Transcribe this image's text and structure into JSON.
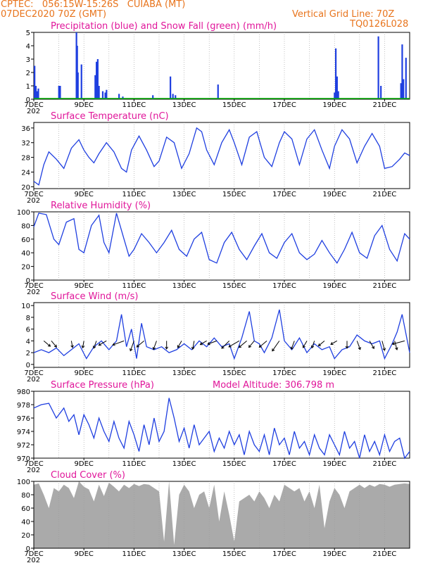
{
  "header": {
    "line1": "CPTEC:   056:15W-15:26S   CUIABA (MT)",
    "line2_left": "07DEC2020 70Z (GMT)",
    "line2_right": "Vertical Grid Line: 70Z",
    "line3_right": "TQ0126L028"
  },
  "colors": {
    "header": "#e8741c",
    "panel_title": "#e0169a",
    "series": "#1f3fe0",
    "snow": "#00b000",
    "cloud": "#aaaaaa",
    "arrows": "#000000"
  },
  "x_labels": [
    "7DEC",
    "9DEC",
    "11DEC",
    "13DEC",
    "15DEC",
    "17DEC",
    "19DEC",
    "21DEC"
  ],
  "x_under_label": "202",
  "chart_data": [
    {
      "type": "bar",
      "title": "Precipitation (blue) and Snow Fall (green) (mm/h)",
      "ylim": [
        0,
        5
      ],
      "yticks": [
        0,
        1,
        2,
        3,
        4,
        5
      ],
      "x_range_days": [
        7,
        22
      ],
      "series": [
        {
          "name": "Precipitation",
          "x": [
            7.03,
            7.08,
            7.13,
            7.18,
            8.0,
            8.05,
            8.7,
            8.73,
            8.76,
            8.9,
            9.45,
            9.5,
            9.55,
            9.6,
            9.75,
            9.85,
            9.9,
            10.4,
            10.55,
            11.75,
            12.45,
            12.55,
            12.65,
            14.35,
            19.0,
            19.05,
            19.1,
            19.15,
            20.75,
            20.85,
            21.65,
            21.7,
            21.75,
            21.85
          ],
          "values": [
            2.5,
            1.0,
            0.6,
            0.8,
            1.0,
            1.0,
            5.0,
            4.0,
            2.0,
            2.6,
            1.8,
            2.8,
            3.0,
            1.0,
            0.6,
            0.5,
            0.7,
            0.4,
            0.2,
            0.3,
            1.7,
            0.4,
            0.3,
            1.1,
            0.5,
            3.8,
            1.7,
            0.6,
            4.7,
            1.0,
            1.2,
            4.1,
            1.5,
            3.1
          ]
        },
        {
          "name": "Snow Fall",
          "x": [
            7,
            22
          ],
          "values": [
            0,
            0
          ]
        }
      ]
    },
    {
      "type": "line",
      "title": "Surface Temperature (nC)",
      "ylim": [
        19.5,
        37.5
      ],
      "yticks": [
        20,
        24,
        28,
        32,
        36
      ],
      "x": [
        7.0,
        7.2,
        7.4,
        7.6,
        7.9,
        8.2,
        8.5,
        8.8,
        9.0,
        9.2,
        9.4,
        9.6,
        9.9,
        10.2,
        10.5,
        10.7,
        10.9,
        11.2,
        11.5,
        11.8,
        12.0,
        12.3,
        12.6,
        12.9,
        13.2,
        13.5,
        13.7,
        13.9,
        14.2,
        14.5,
        14.8,
        15.0,
        15.3,
        15.6,
        15.9,
        16.2,
        16.5,
        16.8,
        17.0,
        17.3,
        17.6,
        17.9,
        18.2,
        18.5,
        18.8,
        19.0,
        19.3,
        19.6,
        19.9,
        20.2,
        20.5,
        20.8,
        21.0,
        21.3,
        21.6,
        21.8,
        22.0
      ],
      "values": [
        21.5,
        20.5,
        26.0,
        29.5,
        27.5,
        25.0,
        30.5,
        32.8,
        30.0,
        28.0,
        26.5,
        29.0,
        32.0,
        29.5,
        25.0,
        24.0,
        30.0,
        33.8,
        30.0,
        25.5,
        27.0,
        33.5,
        32.0,
        25.0,
        29.0,
        36.0,
        35.0,
        30.0,
        26.0,
        32.0,
        35.5,
        32.0,
        26.0,
        33.5,
        35.0,
        28.0,
        25.5,
        32.0,
        35.0,
        33.0,
        26.0,
        33.0,
        35.5,
        30.0,
        25.0,
        31.0,
        35.5,
        33.0,
        26.5,
        31.0,
        34.5,
        31.0,
        25.0,
        25.5,
        27.5,
        29.2,
        28.5
      ]
    },
    {
      "type": "line",
      "title": "Relative Humidity (%)",
      "ylim": [
        0,
        100
      ],
      "yticks": [
        0,
        20,
        40,
        60,
        80,
        100
      ],
      "x": [
        7.0,
        7.2,
        7.5,
        7.8,
        8.0,
        8.3,
        8.6,
        8.8,
        9.0,
        9.3,
        9.6,
        9.8,
        10.0,
        10.3,
        10.6,
        10.8,
        11.0,
        11.3,
        11.6,
        11.9,
        12.2,
        12.5,
        12.8,
        13.1,
        13.4,
        13.7,
        14.0,
        14.3,
        14.6,
        14.9,
        15.2,
        15.5,
        15.8,
        16.1,
        16.4,
        16.7,
        17.0,
        17.3,
        17.6,
        17.9,
        18.2,
        18.5,
        18.8,
        19.1,
        19.4,
        19.7,
        20.0,
        20.3,
        20.6,
        20.9,
        21.2,
        21.5,
        21.8,
        22.0
      ],
      "values": [
        78,
        98,
        96,
        60,
        52,
        85,
        90,
        45,
        40,
        80,
        95,
        55,
        40,
        98,
        60,
        35,
        45,
        68,
        55,
        40,
        55,
        73,
        45,
        35,
        60,
        70,
        30,
        25,
        55,
        70,
        45,
        30,
        50,
        68,
        40,
        32,
        55,
        68,
        40,
        30,
        38,
        58,
        40,
        25,
        45,
        70,
        40,
        32,
        65,
        80,
        45,
        28,
        68,
        60
      ]
    },
    {
      "type": "line",
      "title": "Surface Wind (m/s)",
      "ylim": [
        -0.5,
        10.5
      ],
      "yticks": [
        0,
        2,
        4,
        6,
        8,
        10
      ],
      "x": [
        7.0,
        7.3,
        7.6,
        7.9,
        8.2,
        8.5,
        8.8,
        9.1,
        9.4,
        9.7,
        10.0,
        10.3,
        10.5,
        10.7,
        10.9,
        11.1,
        11.3,
        11.5,
        11.8,
        12.1,
        12.4,
        12.7,
        13.0,
        13.3,
        13.6,
        13.9,
        14.2,
        14.5,
        14.8,
        15.0,
        15.3,
        15.6,
        15.8,
        16.0,
        16.2,
        16.5,
        16.8,
        17.0,
        17.3,
        17.6,
        17.9,
        18.2,
        18.5,
        18.8,
        19.0,
        19.3,
        19.6,
        19.9,
        20.2,
        20.5,
        20.8,
        21.0,
        21.3,
        21.5,
        21.7,
        22.0
      ],
      "values": [
        2.0,
        2.5,
        2.0,
        2.8,
        1.5,
        2.5,
        3.5,
        1.0,
        3.0,
        4.0,
        2.5,
        4.0,
        8.5,
        3.0,
        6.0,
        1.0,
        7.0,
        3.0,
        2.5,
        3.0,
        2.0,
        2.5,
        3.5,
        2.5,
        4.0,
        3.0,
        4.5,
        3.0,
        3.5,
        1.0,
        4.5,
        9.0,
        4.0,
        3.5,
        2.0,
        4.5,
        9.3,
        4.0,
        2.5,
        4.5,
        2.0,
        3.5,
        2.5,
        3.0,
        1.0,
        2.5,
        3.0,
        5.0,
        4.0,
        3.5,
        4.0,
        1.0,
        3.5,
        5.5,
        8.5,
        2.0
      ],
      "arrows": {
        "x": [
          7.4,
          7.7,
          8.5,
          9.0,
          9.5,
          9.9,
          10.6,
          11.0,
          11.4,
          11.9,
          12.3,
          12.9,
          13.4,
          13.9,
          14.3,
          14.8,
          15.2,
          15.5,
          15.8,
          16.3,
          16.8,
          17.4,
          17.9,
          18.2,
          18.6,
          19.1,
          19.5,
          19.9,
          20.4,
          20.9,
          21.4,
          21.8
        ],
        "speed": [
          1.2,
          1.1,
          0.7,
          0.8,
          1.0,
          1.3,
          2.2,
          1.8,
          1.5,
          1.4,
          1.1,
          1.0,
          1.2,
          0.9,
          1.5,
          1.8,
          2.2,
          1.7,
          1.2,
          1.6,
          2.3,
          1.3,
          1.0,
          0.9,
          1.0,
          0.8,
          0.9,
          1.4,
          1.3,
          1.6,
          1.4,
          2.4
        ],
        "dir_deg": [
          130,
          140,
          170,
          190,
          200,
          240,
          250,
          200,
          230,
          200,
          180,
          210,
          190,
          240,
          250,
          225,
          240,
          230,
          220,
          230,
          215,
          200,
          210,
          200,
          230,
          240,
          180,
          160,
          150,
          165,
          165,
          255
        ]
      }
    },
    {
      "type": "line",
      "title": "Surface Pressure (hPa)",
      "annotation": "Model Altitude: 306.798 m",
      "ylim": [
        970,
        980
      ],
      "yticks": [
        970,
        972,
        974,
        976,
        978,
        980
      ],
      "x": [
        7.0,
        7.3,
        7.6,
        7.9,
        8.2,
        8.4,
        8.6,
        8.8,
        9.0,
        9.2,
        9.4,
        9.6,
        9.8,
        10.0,
        10.2,
        10.4,
        10.6,
        10.8,
        11.0,
        11.2,
        11.4,
        11.6,
        11.8,
        12.0,
        12.2,
        12.4,
        12.6,
        12.8,
        13.0,
        13.2,
        13.4,
        13.6,
        13.8,
        14.0,
        14.2,
        14.4,
        14.6,
        14.8,
        15.0,
        15.2,
        15.4,
        15.6,
        15.8,
        16.0,
        16.2,
        16.4,
        16.6,
        16.8,
        17.0,
        17.2,
        17.4,
        17.6,
        17.8,
        18.0,
        18.2,
        18.4,
        18.6,
        18.8,
        19.0,
        19.2,
        19.4,
        19.6,
        19.8,
        20.0,
        20.2,
        20.4,
        20.6,
        20.8,
        21.0,
        21.2,
        21.4,
        21.6,
        21.8,
        22.0
      ],
      "values": [
        977.5,
        978.0,
        978.2,
        976.0,
        977.5,
        975.5,
        976.5,
        973.5,
        976.5,
        975.0,
        973.0,
        976.0,
        974.0,
        972.5,
        975.5,
        973.0,
        971.5,
        975.5,
        973.5,
        971.0,
        975.0,
        972.0,
        976.0,
        972.5,
        974.0,
        979.0,
        976.0,
        972.5,
        974.5,
        971.5,
        975.0,
        972.0,
        973.0,
        974.0,
        971.0,
        973.0,
        971.5,
        974.0,
        972.0,
        973.5,
        970.5,
        974.0,
        972.0,
        971.0,
        973.5,
        970.5,
        974.5,
        972.0,
        973.0,
        970.5,
        974.0,
        971.5,
        972.5,
        970.5,
        973.5,
        971.5,
        970.5,
        973.5,
        972.0,
        970.5,
        974.0,
        971.5,
        972.5,
        970.0,
        973.5,
        971.0,
        972.5,
        970.5,
        973.5,
        971.0,
        972.5,
        973.0,
        970.0,
        971.0
      ]
    },
    {
      "type": "area",
      "title": "Cloud Cover (%)",
      "ylim": [
        0,
        100
      ],
      "yticks": [
        0,
        20,
        40,
        60,
        80,
        100
      ],
      "x": [
        7.0,
        7.2,
        7.4,
        7.6,
        7.8,
        8.0,
        8.2,
        8.4,
        8.6,
        8.8,
        9.0,
        9.2,
        9.4,
        9.6,
        9.8,
        10.0,
        10.2,
        10.4,
        10.6,
        10.8,
        11.0,
        11.2,
        11.4,
        11.6,
        11.8,
        12.0,
        12.2,
        12.4,
        12.6,
        12.8,
        13.0,
        13.2,
        13.4,
        13.6,
        13.8,
        14.0,
        14.2,
        14.4,
        14.6,
        14.8,
        15.0,
        15.2,
        15.4,
        15.6,
        15.8,
        16.0,
        16.2,
        16.4,
        16.6,
        16.8,
        17.0,
        17.2,
        17.4,
        17.6,
        17.8,
        18.0,
        18.2,
        18.4,
        18.6,
        18.8,
        19.0,
        19.2,
        19.4,
        19.6,
        19.8,
        20.0,
        20.2,
        20.4,
        20.6,
        20.8,
        21.0,
        21.2,
        21.4,
        21.6,
        21.8,
        22.0
      ],
      "values": [
        95,
        97,
        80,
        60,
        90,
        85,
        95,
        90,
        75,
        100,
        92,
        88,
        70,
        95,
        78,
        98,
        92,
        85,
        95,
        90,
        96,
        93,
        96,
        95,
        90,
        85,
        10,
        100,
        5,
        80,
        95,
        85,
        60,
        80,
        85,
        60,
        95,
        40,
        85,
        50,
        10,
        70,
        75,
        80,
        70,
        85,
        75,
        60,
        80,
        70,
        95,
        90,
        85,
        90,
        70,
        85,
        60,
        95,
        30,
        70,
        90,
        80,
        60,
        85,
        90,
        95,
        90,
        95,
        92,
        96,
        95,
        92,
        95,
        96,
        97,
        96
      ]
    }
  ]
}
